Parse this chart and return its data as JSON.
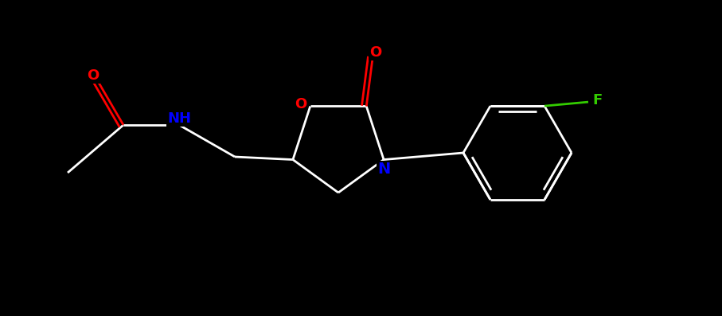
{
  "background_color": "#000000",
  "bond_color": "#ffffff",
  "atom_colors": {
    "O": "#ff0000",
    "N": "#0000ff",
    "F": "#33cc00",
    "C": "#ffffff",
    "H": "#ffffff"
  },
  "figsize": [
    9.07,
    3.97
  ],
  "dpi": 100
}
